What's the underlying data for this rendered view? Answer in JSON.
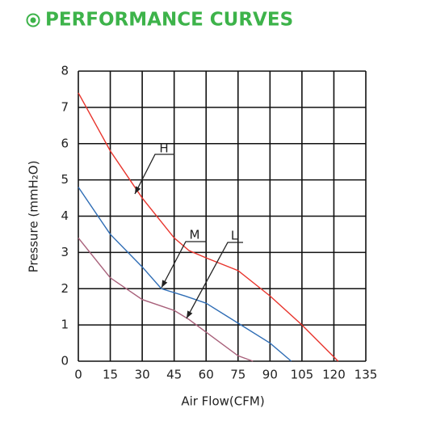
{
  "chart_data": {
    "type": "line",
    "title": "PERFORMANCE CURVES",
    "x_label": "Air Flow(CFM)",
    "y_label": "Pressure (mmH₂O)",
    "xlim": [
      0,
      135
    ],
    "ylim": [
      0,
      8
    ],
    "xticks": [
      0,
      15,
      30,
      45,
      60,
      75,
      90,
      105,
      120,
      135
    ],
    "yticks": [
      0,
      1,
      2,
      3,
      4,
      5,
      6,
      7,
      8
    ],
    "grid": true,
    "series": [
      {
        "name": "H",
        "color": "#e8342c",
        "x": [
          0,
          15,
          30,
          45,
          52,
          60,
          75,
          90,
          105,
          122
        ],
        "values": [
          7.4,
          5.8,
          4.5,
          3.4,
          3.05,
          2.85,
          2.5,
          1.8,
          1.0,
          0
        ]
      },
      {
        "name": "M",
        "color": "#2f6db5",
        "x": [
          0,
          15,
          30,
          39,
          50,
          60,
          75,
          90,
          100
        ],
        "values": [
          4.8,
          3.5,
          2.6,
          2.0,
          1.8,
          1.6,
          1.05,
          0.5,
          0
        ]
      },
      {
        "name": "L",
        "color": "#a8607a",
        "x": [
          0,
          15,
          30,
          40,
          45,
          52,
          60,
          75,
          82
        ],
        "values": [
          3.4,
          2.3,
          1.7,
          1.5,
          1.4,
          1.15,
          0.8,
          0.15,
          0
        ]
      }
    ]
  }
}
